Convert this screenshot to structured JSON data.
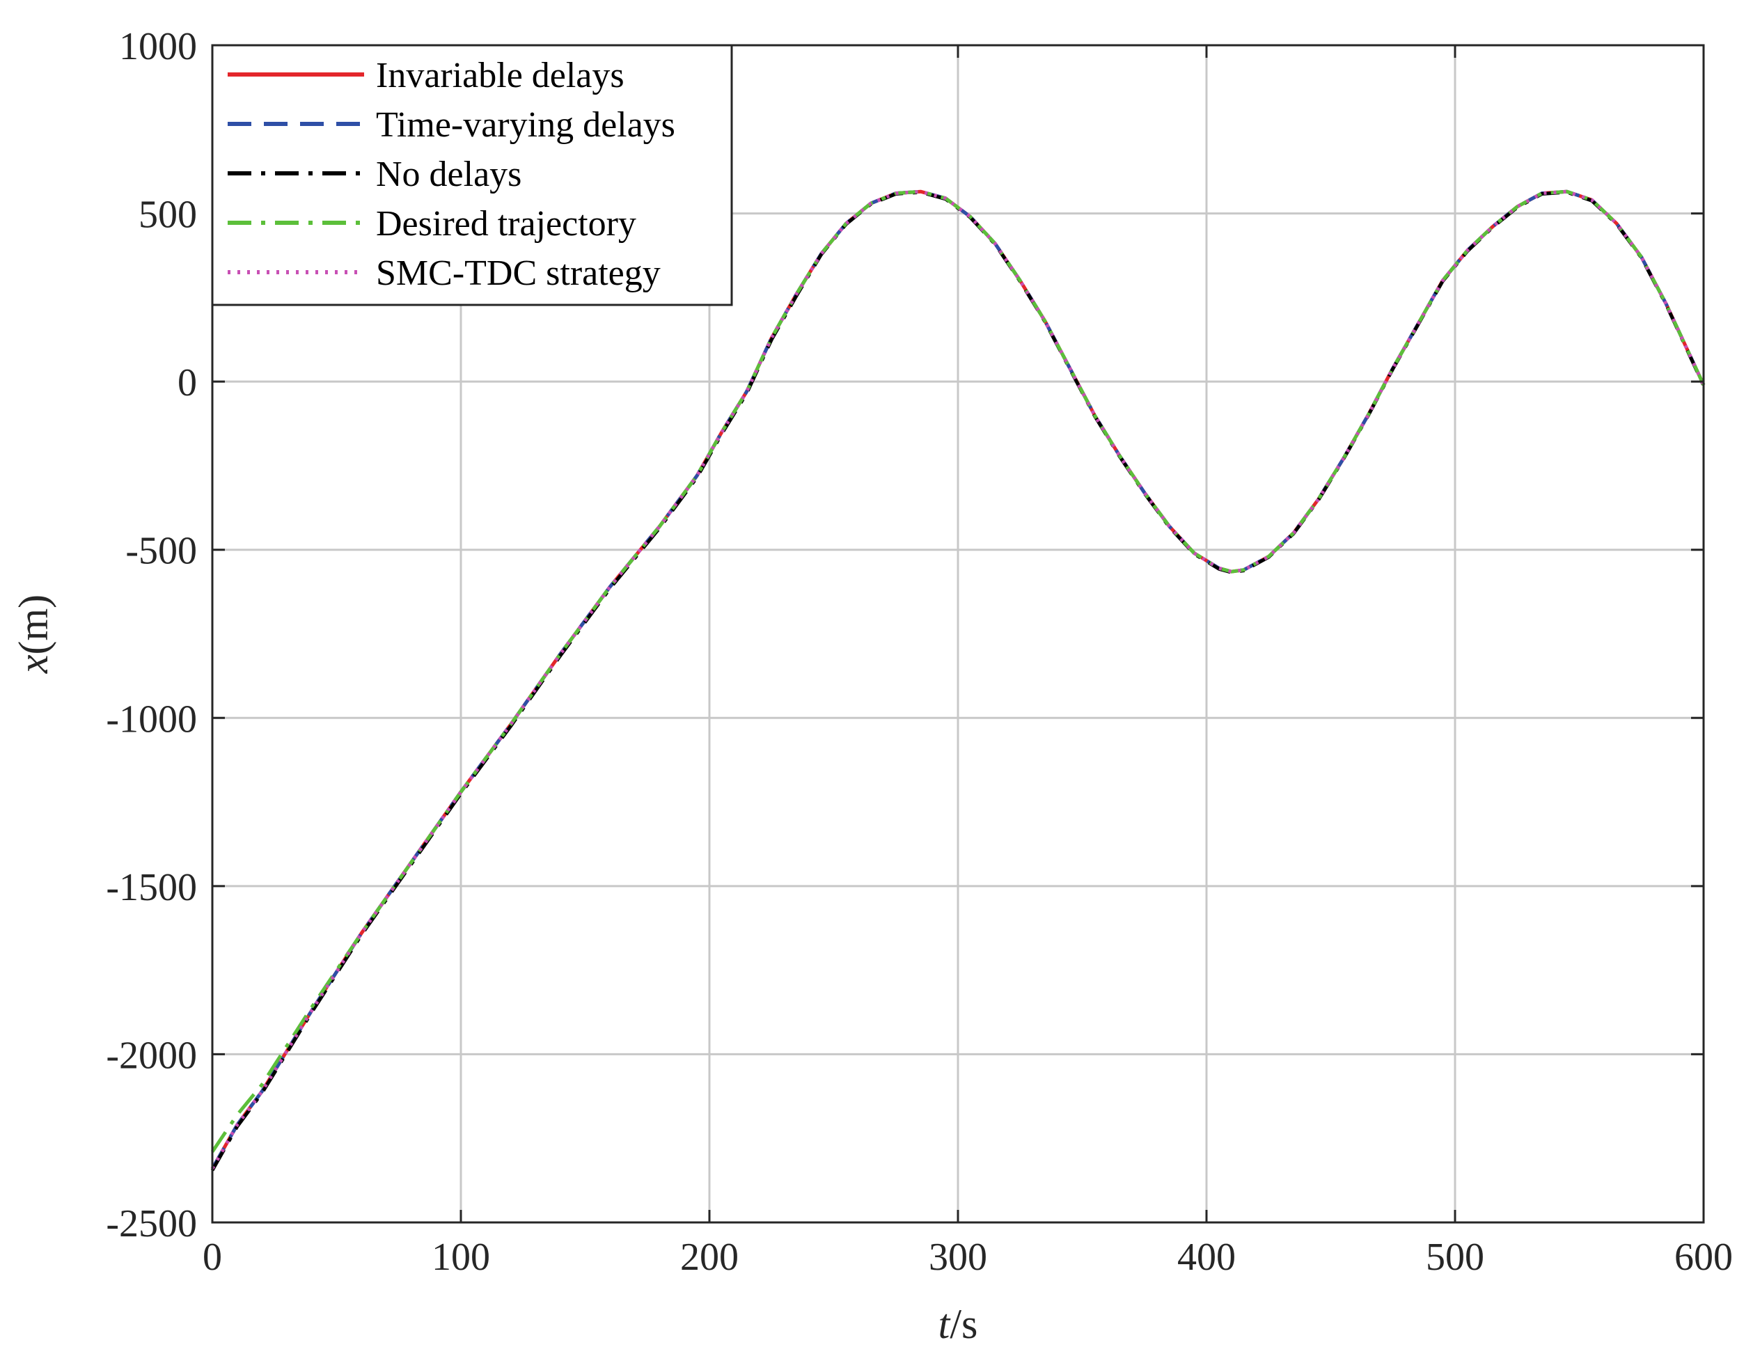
{
  "chart_data": {
    "type": "line",
    "xlabel_italic": "t",
    "xlabel_rest": "/s",
    "ylabel_italic": "x",
    "ylabel_rest": "(m)",
    "xlim": [
      0,
      600
    ],
    "ylim": [
      -2500,
      1000
    ],
    "xticks": [
      0,
      100,
      200,
      300,
      400,
      500,
      600
    ],
    "yticks": [
      -2500,
      -2000,
      -1500,
      -1000,
      -500,
      0,
      500,
      1000
    ],
    "xtick_labels": [
      "0",
      "100",
      "200",
      "300",
      "400",
      "500",
      "600"
    ],
    "ytick_labels": [
      "-2500",
      "-2000",
      "-1500",
      "-1000",
      "-500",
      "0",
      "500",
      "1000"
    ],
    "grid": true,
    "legend_position": "top-left",
    "series": [
      {
        "name": "Invariable delays",
        "color": "#e3262b",
        "style": "solid",
        "x": [
          0,
          10,
          20,
          40,
          60,
          80,
          100,
          120,
          140,
          160,
          180,
          195,
          205,
          215,
          225,
          235,
          245,
          255,
          265,
          275,
          285,
          295,
          305,
          315,
          325,
          335,
          345,
          355,
          365,
          375,
          385,
          395,
          405,
          410,
          415,
          425,
          435,
          445,
          455,
          465,
          475,
          485,
          495,
          505,
          515,
          525,
          535,
          545,
          555,
          565,
          575,
          585,
          595,
          600
        ],
        "y": [
          -2340,
          -2210,
          -2110,
          -1870,
          -1640,
          -1430,
          -1220,
          -1020,
          -810,
          -610,
          -430,
          -280,
          -150,
          -30,
          130,
          260,
          380,
          470,
          530,
          560,
          565,
          545,
          490,
          410,
          300,
          180,
          40,
          -100,
          -220,
          -330,
          -430,
          -510,
          -555,
          -565,
          -560,
          -520,
          -450,
          -350,
          -230,
          -100,
          40,
          170,
          300,
          390,
          460,
          520,
          560,
          565,
          540,
          470,
          370,
          230,
          70,
          -10
        ]
      },
      {
        "name": "Time-varying delays",
        "color": "#2e4fa6",
        "style": "dashed",
        "x": [
          0,
          10,
          20,
          40,
          60,
          80,
          100,
          120,
          140,
          160,
          180,
          195,
          205,
          215,
          225,
          235,
          245,
          255,
          265,
          275,
          285,
          295,
          305,
          315,
          325,
          335,
          345,
          355,
          365,
          375,
          385,
          395,
          405,
          410,
          415,
          425,
          435,
          445,
          455,
          465,
          475,
          485,
          495,
          505,
          515,
          525,
          535,
          545,
          555,
          565,
          575,
          585,
          595,
          600
        ],
        "y": [
          -2340,
          -2210,
          -2110,
          -1870,
          -1640,
          -1430,
          -1220,
          -1020,
          -810,
          -610,
          -430,
          -280,
          -150,
          -30,
          130,
          260,
          380,
          470,
          530,
          560,
          565,
          545,
          490,
          410,
          300,
          180,
          40,
          -100,
          -220,
          -330,
          -430,
          -510,
          -555,
          -565,
          -560,
          -520,
          -450,
          -350,
          -230,
          -100,
          40,
          170,
          300,
          390,
          460,
          520,
          560,
          565,
          540,
          470,
          370,
          230,
          70,
          -10
        ]
      },
      {
        "name": "No delays",
        "color": "#000000",
        "style": "dashdot",
        "x": [
          0,
          10,
          20,
          40,
          60,
          80,
          100,
          120,
          140,
          160,
          180,
          195,
          205,
          215,
          225,
          235,
          245,
          255,
          265,
          275,
          285,
          295,
          305,
          315,
          325,
          335,
          345,
          355,
          365,
          375,
          385,
          395,
          405,
          410,
          415,
          425,
          435,
          445,
          455,
          465,
          475,
          485,
          495,
          505,
          515,
          525,
          535,
          545,
          555,
          565,
          575,
          585,
          595,
          600
        ],
        "y": [
          -2345,
          -2215,
          -2115,
          -1875,
          -1645,
          -1435,
          -1225,
          -1025,
          -815,
          -615,
          -435,
          -285,
          -155,
          -35,
          125,
          255,
          378,
          468,
          528,
          558,
          563,
          543,
          488,
          408,
          298,
          178,
          38,
          -102,
          -222,
          -332,
          -432,
          -512,
          -557,
          -567,
          -562,
          -522,
          -452,
          -352,
          -232,
          -102,
          38,
          168,
          298,
          388,
          458,
          518,
          558,
          563,
          538,
          468,
          368,
          228,
          68,
          -12
        ]
      },
      {
        "name": "Desired trajectory",
        "color": "#5cbf3a",
        "style": "dashdot",
        "x": [
          0,
          10,
          20,
          40,
          60,
          80,
          100,
          120,
          140,
          160,
          180,
          195,
          205,
          215,
          225,
          235,
          245,
          255,
          265,
          275,
          285,
          295,
          305,
          315,
          325,
          335,
          345,
          355,
          365,
          375,
          385,
          395,
          405,
          410,
          415,
          425,
          435,
          445,
          455,
          465,
          475,
          485,
          495,
          505,
          515,
          525,
          535,
          545,
          555,
          565,
          575,
          585,
          595,
          600
        ],
        "y": [
          -2290,
          -2180,
          -2090,
          -1860,
          -1640,
          -1430,
          -1220,
          -1020,
          -810,
          -610,
          -430,
          -280,
          -150,
          -30,
          130,
          260,
          380,
          470,
          530,
          560,
          565,
          545,
          490,
          410,
          300,
          180,
          40,
          -100,
          -220,
          -330,
          -430,
          -510,
          -555,
          -565,
          -560,
          -520,
          -450,
          -350,
          -230,
          -100,
          40,
          170,
          300,
          390,
          460,
          520,
          560,
          565,
          540,
          470,
          370,
          230,
          70,
          -10
        ]
      },
      {
        "name": "SMC-TDC strategy",
        "color": "#c850b4",
        "style": "dotted",
        "x": [
          0,
          10,
          20,
          40,
          60,
          80,
          100,
          120,
          140,
          160,
          180,
          195,
          205,
          215,
          225,
          235,
          245,
          255,
          265,
          275,
          285,
          295,
          305,
          315,
          325,
          335,
          345,
          355,
          365,
          375,
          385,
          395,
          405,
          410,
          415,
          425,
          435,
          445,
          455,
          465,
          475,
          485,
          495,
          505,
          515,
          525,
          535,
          545,
          555,
          565,
          575,
          585,
          595,
          600
        ],
        "y": [
          -2340,
          -2210,
          -2110,
          -1870,
          -1640,
          -1430,
          -1220,
          -1020,
          -810,
          -610,
          -430,
          -280,
          -150,
          -30,
          130,
          260,
          380,
          470,
          530,
          560,
          565,
          545,
          490,
          410,
          300,
          180,
          40,
          -100,
          -220,
          -330,
          -430,
          -510,
          -555,
          -565,
          -560,
          -520,
          -450,
          -350,
          -230,
          -100,
          40,
          170,
          300,
          390,
          460,
          520,
          560,
          565,
          540,
          470,
          370,
          230,
          70,
          -10
        ]
      }
    ]
  }
}
